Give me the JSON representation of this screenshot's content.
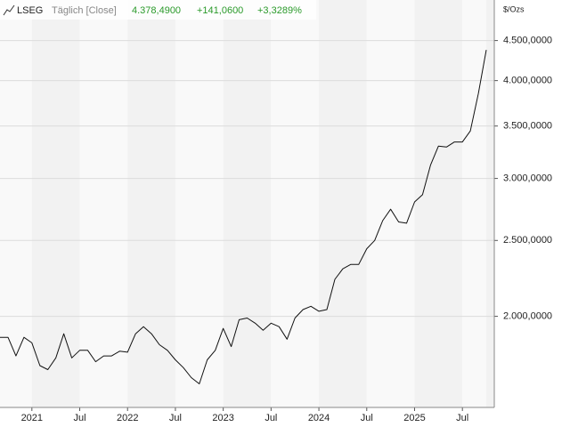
{
  "chart_data": {
    "type": "line",
    "header": {
      "interval": "Täglich [Close]",
      "last": "4.378,4900",
      "change": "+141,0600",
      "change_pct": "+3,3289%"
    },
    "y_unit": "$/Ozs",
    "log_scale": true,
    "grid": true,
    "x": [
      "2020-09",
      "2020-10",
      "2020-11",
      "2020-12",
      "2021-01",
      "2021-02",
      "2021-03",
      "2021-04",
      "2021-05",
      "2021-06",
      "2021-07",
      "2021-08",
      "2021-09",
      "2021-10",
      "2021-11",
      "2021-12",
      "2022-01",
      "2022-02",
      "2022-03",
      "2022-04",
      "2022-05",
      "2022-06",
      "2022-07",
      "2022-08",
      "2022-09",
      "2022-10",
      "2022-11",
      "2022-12",
      "2023-01",
      "2023-02",
      "2023-03",
      "2023-04",
      "2023-05",
      "2023-06",
      "2023-07",
      "2023-08",
      "2023-09",
      "2023-10",
      "2023-11",
      "2023-12",
      "2024-01",
      "2024-02",
      "2024-03",
      "2024-04",
      "2024-05",
      "2024-06",
      "2024-07",
      "2024-08",
      "2024-09",
      "2024-10",
      "2024-11",
      "2024-12",
      "2025-01",
      "2025-02",
      "2025-03",
      "2025-04",
      "2025-05",
      "2025-06",
      "2025-07",
      "2025-08",
      "2025-09",
      "2025-10"
    ],
    "series": [
      {
        "name": "LSEG",
        "color": "#111111",
        "values": [
          1880,
          1880,
          1780,
          1880,
          1850,
          1730,
          1710,
          1770,
          1900,
          1770,
          1810,
          1810,
          1750,
          1780,
          1780,
          1805,
          1800,
          1900,
          1940,
          1900,
          1840,
          1810,
          1760,
          1720,
          1670,
          1640,
          1760,
          1810,
          1930,
          1830,
          1980,
          1990,
          1960,
          1920,
          1960,
          1940,
          1870,
          1990,
          2040,
          2060,
          2030,
          2040,
          2230,
          2300,
          2330,
          2330,
          2440,
          2500,
          2650,
          2740,
          2640,
          2630,
          2800,
          2860,
          3120,
          3300,
          3290,
          3340,
          3340,
          3450,
          3850,
          4378
        ]
      }
    ],
    "xlim": [
      "2020-09",
      "2025-11"
    ],
    "xticks": [
      {
        "value": "2021-01",
        "label": "2021"
      },
      {
        "value": "2021-07",
        "label": "Jul"
      },
      {
        "value": "2022-01",
        "label": "2022"
      },
      {
        "value": "2022-07",
        "label": "Jul"
      },
      {
        "value": "2023-01",
        "label": "2023"
      },
      {
        "value": "2023-07",
        "label": "Jul"
      },
      {
        "value": "2024-01",
        "label": "2024"
      },
      {
        "value": "2024-07",
        "label": "Jul"
      },
      {
        "value": "2025-01",
        "label": "2025"
      },
      {
        "value": "2025-07",
        "label": "Jul"
      }
    ],
    "ylim": [
      1530,
      5070
    ],
    "yticks": [
      {
        "value": 2000,
        "label": "2.000,0000"
      },
      {
        "value": 2500,
        "label": "2.500,0000"
      },
      {
        "value": 3000,
        "label": "3.000,0000"
      },
      {
        "value": 3500,
        "label": "3.500,0000"
      },
      {
        "value": 4000,
        "label": "4.000,0000"
      },
      {
        "value": 4500,
        "label": "4.500,0000"
      }
    ]
  }
}
